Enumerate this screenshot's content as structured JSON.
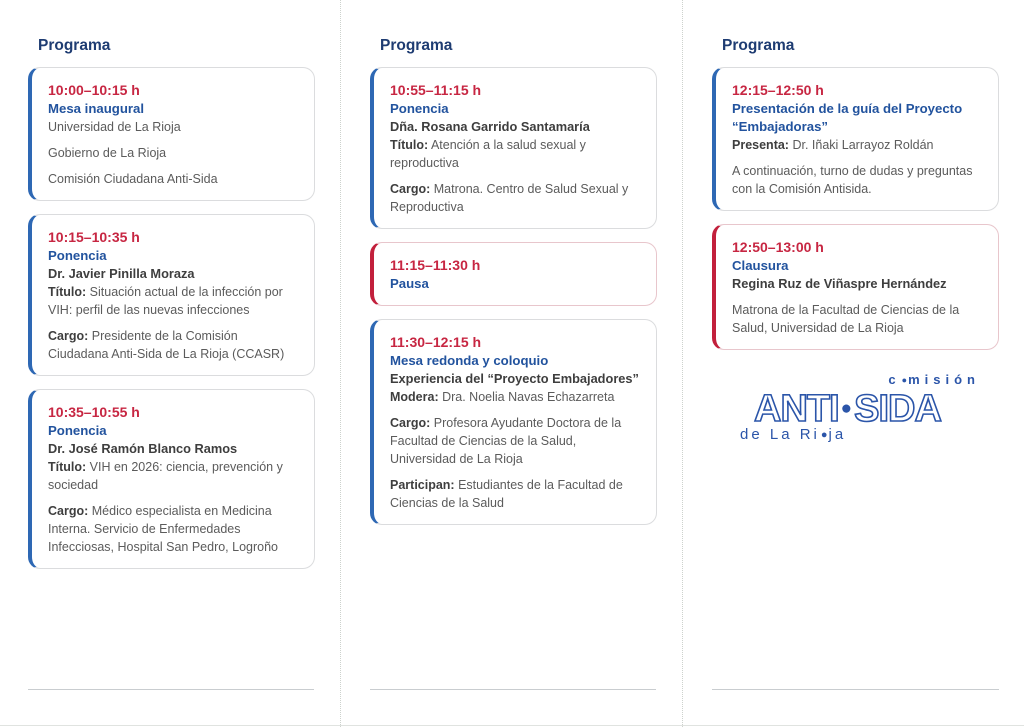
{
  "colors": {
    "header_navy": "#1e3c72",
    "title_blue": "#22539e",
    "time_red": "#c72642",
    "accent_blue": "#2e68b4",
    "accent_red": "#c2203c",
    "card_border_gray": "#dbdcde",
    "card_border_pink": "#e8c6cc",
    "text_dark": "#3e3e3e",
    "text_body_gray": "#5b5b5b",
    "logo_blue": "#2b55a9"
  },
  "columns": [
    {
      "header": "Programa",
      "cards": [
        {
          "accent": "blue",
          "lines": [
            {
              "kind": "time",
              "text": "10:00–10:15 h"
            },
            {
              "kind": "title",
              "text": "Mesa inaugural"
            },
            {
              "kind": "body",
              "text": "Universidad de La Rioja"
            },
            {
              "kind": "body",
              "text": "Gobierno de La Rioja",
              "gap": true
            },
            {
              "kind": "body",
              "text": "Comisión Ciudadana Anti-Sida",
              "gap": true
            }
          ]
        },
        {
          "accent": "blue",
          "lines": [
            {
              "kind": "time",
              "text": "10:15–10:35 h"
            },
            {
              "kind": "title",
              "text": "Ponencia"
            },
            {
              "kind": "name",
              "text": "Dr. Javier Pinilla Moraza"
            },
            {
              "kind": "body",
              "label": "Título:",
              "text": "Situación actual de la infección por VIH: perfil de las nuevas infecciones"
            },
            {
              "kind": "body",
              "label": "Cargo:",
              "text": "Presidente de la Comisión Ciudadana Anti-Sida de La Rioja (CCASR)",
              "gap": true
            }
          ]
        },
        {
          "accent": "blue",
          "lines": [
            {
              "kind": "time",
              "text": "10:35–10:55 h"
            },
            {
              "kind": "title",
              "text": "Ponencia"
            },
            {
              "kind": "name",
              "text": "Dr. José Ramón Blanco Ramos"
            },
            {
              "kind": "body",
              "label": "Título:",
              "text": "VIH en 2026: ciencia, prevención y sociedad"
            },
            {
              "kind": "body",
              "label": "Cargo:",
              "text": "Médico especialista en Medicina Interna. Servicio de Enfermedades Infecciosas, Hospital San Pedro, Logroño",
              "gap": true
            }
          ]
        }
      ]
    },
    {
      "header": "Programa",
      "cards": [
        {
          "accent": "blue",
          "lines": [
            {
              "kind": "time",
              "text": "10:55–11:15 h"
            },
            {
              "kind": "title",
              "text": "Ponencia"
            },
            {
              "kind": "name",
              "text": "Dña. Rosana Garrido Santamaría"
            },
            {
              "kind": "body",
              "label": "Título:",
              "text": "Atención a la salud sexual y reproductiva"
            },
            {
              "kind": "body",
              "label": "Cargo:",
              "text": "Matrona. Centro de Salud Sexual y Reproductiva",
              "gap": true
            }
          ]
        },
        {
          "accent": "red",
          "lines": [
            {
              "kind": "time",
              "text": "11:15–11:30 h"
            },
            {
              "kind": "title",
              "text": "Pausa"
            }
          ]
        },
        {
          "accent": "blue",
          "lines": [
            {
              "kind": "time",
              "text": "11:30–12:15 h"
            },
            {
              "kind": "title",
              "text": "Mesa redonda y coloquio"
            },
            {
              "kind": "name",
              "text": "Experiencia del “Proyecto Embajadores”"
            },
            {
              "kind": "body",
              "label": "Modera:",
              "text": "Dra. Noelia Navas Echazarreta"
            },
            {
              "kind": "body",
              "label": "Cargo:",
              "text": "Profesora Ayudante Doctora de la Facultad de Ciencias de la Salud, Universidad de La Rioja",
              "gap": true
            },
            {
              "kind": "body",
              "label": "Participan:",
              "text": "Estudiantes de la Facultad de Ciencias de la Salud",
              "gap": true
            }
          ]
        }
      ]
    },
    {
      "header": "Programa",
      "cards": [
        {
          "accent": "blue",
          "lines": [
            {
              "kind": "time",
              "text": "12:15–12:50 h"
            },
            {
              "kind": "title",
              "text": "Presentación de la guía del Proyecto “Embajadoras”"
            },
            {
              "kind": "body",
              "label": "Presenta:",
              "text": "Dr. Iñaki Larrayoz Roldán"
            },
            {
              "kind": "body",
              "text": "A continuación, turno de dudas y preguntas con la Comisión Antisida.",
              "gap": true
            }
          ]
        },
        {
          "accent": "red",
          "lines": [
            {
              "kind": "time",
              "text": "12:50–13:00 h"
            },
            {
              "kind": "title",
              "text": "Clausura"
            },
            {
              "kind": "name",
              "text": "Regina Ruz de Viñaspre Hernández"
            },
            {
              "kind": "body",
              "text": "Matrona de la Facultad de Ciencias de la Salud, Universidad de La Rioja",
              "gap": true
            }
          ]
        }
      ]
    }
  ],
  "logo": {
    "top_pre": "c",
    "top_post": "misión",
    "main_left": "ANTI",
    "main_right": "SIDA",
    "bottom_pre": "de La Ri",
    "bottom_post": "ja",
    "dot": "●"
  }
}
